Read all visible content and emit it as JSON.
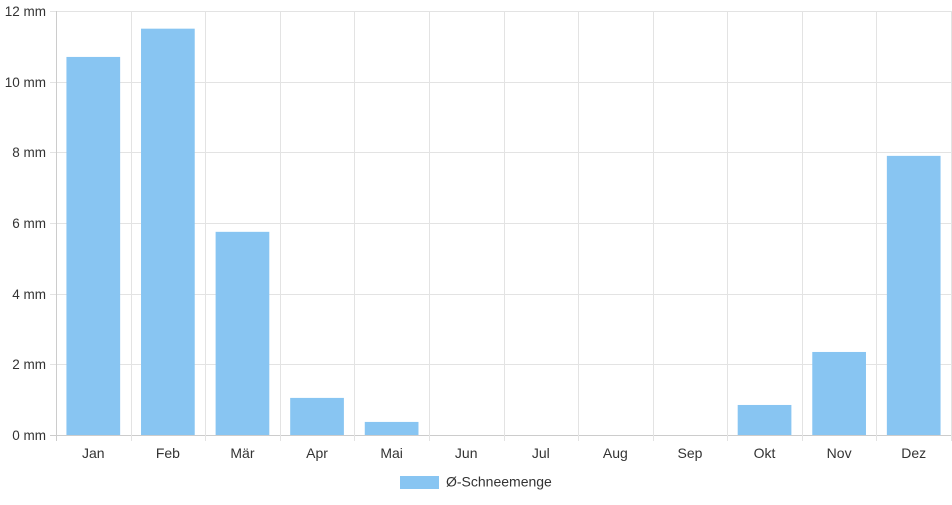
{
  "chart_data": {
    "type": "bar",
    "categories": [
      "Jan",
      "Feb",
      "Mär",
      "Apr",
      "Mai",
      "Jun",
      "Jul",
      "Aug",
      "Sep",
      "Okt",
      "Nov",
      "Dez"
    ],
    "series": [
      {
        "name": "Ø-Schneemenge",
        "values": [
          10.7,
          11.5,
          5.75,
          1.05,
          0.37,
          0,
          0,
          0,
          0,
          0.85,
          2.35,
          7.9
        ],
        "color": "#88c5f2"
      }
    ],
    "y_unit": "mm",
    "ylim": [
      0,
      12
    ],
    "yticks": [
      0,
      2,
      4,
      6,
      8,
      10,
      12
    ],
    "ytick_labels": [
      "0 mm",
      "2 mm",
      "4 mm",
      "6 mm",
      "8 mm",
      "10 mm",
      "12 mm"
    ],
    "grid": true,
    "legend_position": "bottom-center",
    "colors": {
      "grid": "#e3e3e3",
      "axis": "#cccccc",
      "text": "#333333"
    }
  }
}
